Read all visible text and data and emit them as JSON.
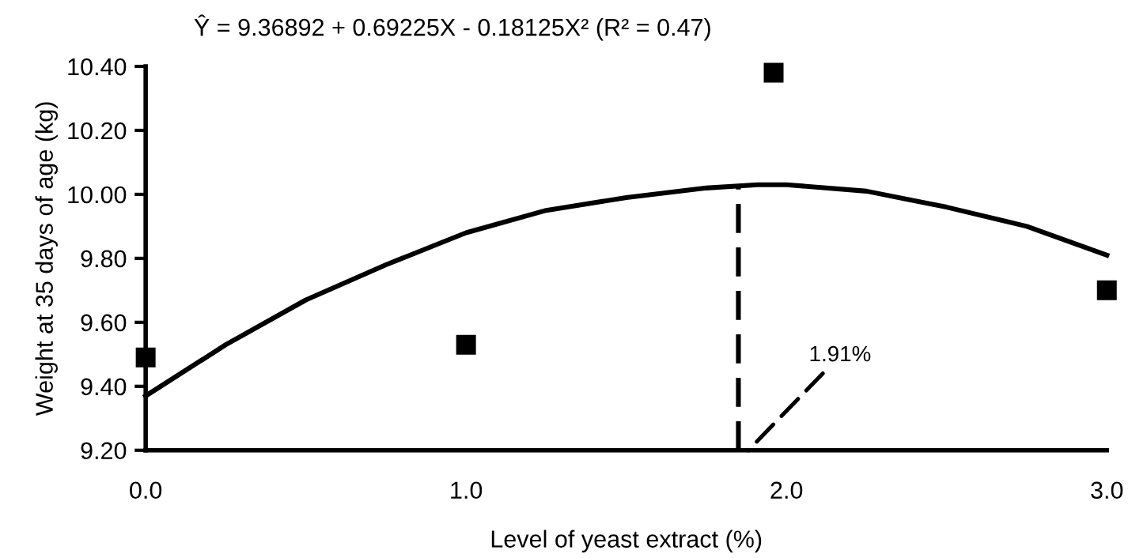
{
  "chart_data": {
    "type": "scatter",
    "title": "Ŷ = 9.36892 + 0.69225X - 0.18125X² (R² = 0.47)",
    "xlabel": "Level of yeast extract (%)",
    "ylabel": "Weight at 35 days of age (kg)",
    "series": [
      {
        "color": "#000000",
        "marker": "square",
        "x": [
          0,
          1,
          1.96,
          3
        ],
        "values": [
          9.49,
          9.53,
          10.38,
          9.7
        ]
      },
      {
        "type": "line",
        "color": "#000000",
        "marker": "none",
        "line_style": "solid",
        "x": [
          0,
          0.25,
          0.5,
          0.75,
          1,
          1.25,
          1.5,
          1.75,
          1.91,
          2.0,
          2.25,
          2.5,
          2.75,
          3
        ],
        "values": [
          9.37,
          9.53,
          9.67,
          9.78,
          9.88,
          9.95,
          9.99,
          10.02,
          10.03,
          10.03,
          10.01,
          9.96,
          9.9,
          9.81
        ]
      },
      {
        "type": "line",
        "color": "#000000",
        "marker": "none",
        "line_style": "dashed",
        "x": [
          1.85,
          1.85
        ],
        "values": [
          9.2,
          10.03
        ]
      }
    ],
    "annotations": [
      "1.91%"
    ],
    "xlim": [
      0,
      3
    ],
    "ylim": [
      9.2,
      10.4
    ],
    "xticks": [
      {
        "value": 0,
        "label": "0.0"
      },
      {
        "value": 1,
        "label": "1.0"
      },
      {
        "value": 2,
        "label": "2.0"
      },
      {
        "value": 3,
        "label": "3.0"
      }
    ],
    "yticks": [
      {
        "value": 9.2,
        "label": "9.20"
      },
      {
        "value": 9.4,
        "label": "9.40"
      },
      {
        "value": 9.6,
        "label": "9.60"
      },
      {
        "value": 9.8,
        "label": "9.80"
      },
      {
        "value": 10.0,
        "label": "10.00"
      },
      {
        "value": 10.2,
        "label": "10.20"
      },
      {
        "value": 10.4,
        "label": "10.40"
      }
    ],
    "grid": false,
    "legend": false
  }
}
